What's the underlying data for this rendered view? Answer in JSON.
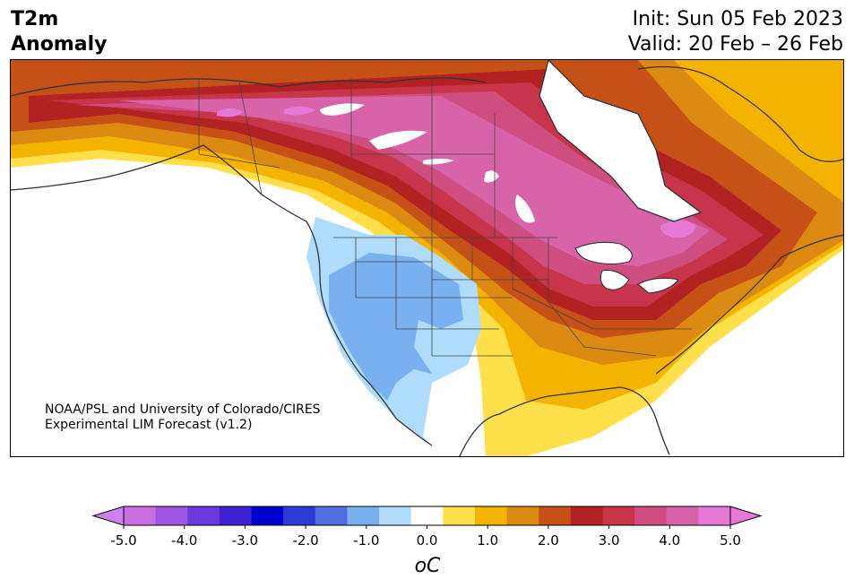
{
  "header": {
    "title_line1": "T2m",
    "title_line2": "Anomaly",
    "init_label": "Init: Sun 05 Feb 2023",
    "valid_label": "Valid: 20 Feb – 26 Feb"
  },
  "map": {
    "credit_line1": "NOAA/PSL and University of Colorado/CIRES",
    "credit_line2": "Experimental LIM Forecast (v1.2)"
  },
  "colorbar": {
    "unit_label": "oC",
    "levels": [
      -5.0,
      -4.5,
      -4.0,
      -3.5,
      -3.0,
      -2.5,
      -2.0,
      -1.5,
      -1.0,
      -0.5,
      0.5,
      1.0,
      1.5,
      2.0,
      2.5,
      3.0,
      3.5,
      4.0,
      4.5,
      5.0
    ],
    "colors": [
      "#c86ee0",
      "#9f55e0",
      "#6a3bdc",
      "#3e22d4",
      "#0000cc",
      "#2a3bd8",
      "#4f6fe0",
      "#78b0f0",
      "#aedcfa",
      "#ffffff",
      "#ffe04a",
      "#f4b300",
      "#dd8a12",
      "#c65116",
      "#b32222",
      "#c8344a",
      "#cf4e80",
      "#d863a8",
      "#e878d8"
    ],
    "tick_labels": [
      "-5.0",
      "-4.0",
      "-3.0",
      "-2.0",
      "-1.0",
      "0.0",
      "1.0",
      "2.0",
      "3.0",
      "4.0",
      "5.0"
    ],
    "extend_low_color": "#d080f0",
    "extend_high_color": "#e878d8"
  }
}
